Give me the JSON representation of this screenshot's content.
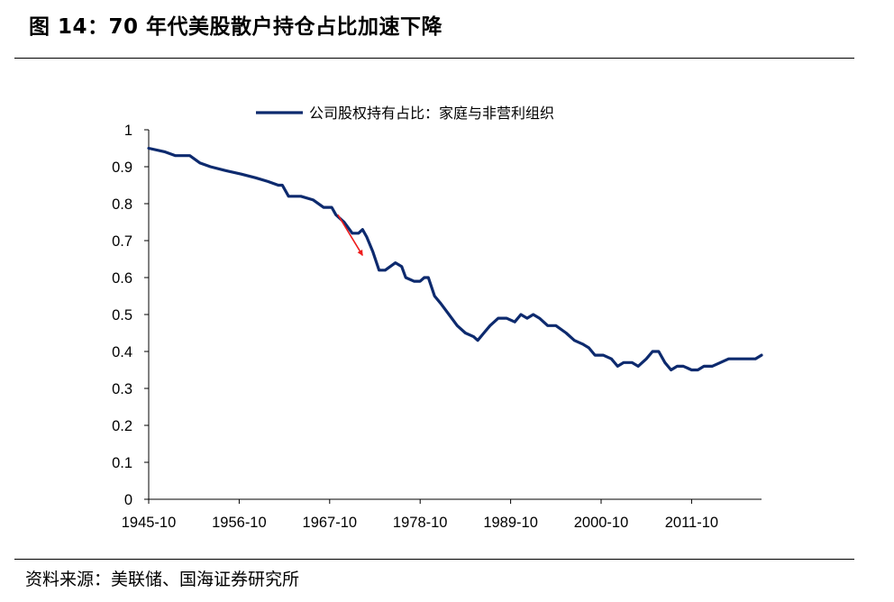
{
  "figure": {
    "title": "图 14：70 年代美股散户持仓占比加速下降",
    "source": "资料来源：美联储、国海证券研究所"
  },
  "chart_data": {
    "type": "line",
    "title": "",
    "xlabel": "",
    "ylabel": "",
    "ylim": [
      0,
      1
    ],
    "yticks": [
      "0",
      "0.1",
      "0.2",
      "0.3",
      "0.4",
      "0.5",
      "0.6",
      "0.7",
      "0.8",
      "0.9",
      "1"
    ],
    "xticks": [
      "1945-10",
      "1956-10",
      "1967-10",
      "1978-10",
      "1989-10",
      "2000-10",
      "2011-10"
    ],
    "xlim": [
      "1945-10",
      "2020-04"
    ],
    "grid": false,
    "legend_position": "top-center",
    "series": [
      {
        "name": "公司股权持有占比：家庭与非营利组织",
        "color": "#0d2a6e",
        "points": [
          [
            "1945-10",
            0.95
          ],
          [
            "1947-10",
            0.94
          ],
          [
            "1949-01",
            0.93
          ],
          [
            "1950-10",
            0.93
          ],
          [
            "1952-01",
            0.91
          ],
          [
            "1953-04",
            0.9
          ],
          [
            "1955-01",
            0.89
          ],
          [
            "1957-01",
            0.88
          ],
          [
            "1958-10",
            0.87
          ],
          [
            "1960-04",
            0.86
          ],
          [
            "1961-07",
            0.85
          ],
          [
            "1962-01",
            0.85
          ],
          [
            "1962-10",
            0.82
          ],
          [
            "1964-04",
            0.82
          ],
          [
            "1965-10",
            0.81
          ],
          [
            "1967-01",
            0.79
          ],
          [
            "1968-01",
            0.79
          ],
          [
            "1968-07",
            0.77
          ],
          [
            "1969-07",
            0.75
          ],
          [
            "1970-07",
            0.72
          ],
          [
            "1971-04",
            0.72
          ],
          [
            "1971-10",
            0.73
          ],
          [
            "1972-04",
            0.71
          ],
          [
            "1973-01",
            0.67
          ],
          [
            "1973-10",
            0.62
          ],
          [
            "1974-07",
            0.62
          ],
          [
            "1975-10",
            0.64
          ],
          [
            "1976-07",
            0.63
          ],
          [
            "1977-01",
            0.6
          ],
          [
            "1978-01",
            0.59
          ],
          [
            "1978-10",
            0.59
          ],
          [
            "1979-04",
            0.6
          ],
          [
            "1979-10",
            0.6
          ],
          [
            "1980-07",
            0.55
          ],
          [
            "1981-04",
            0.53
          ],
          [
            "1982-04",
            0.5
          ],
          [
            "1983-04",
            0.47
          ],
          [
            "1984-04",
            0.45
          ],
          [
            "1985-04",
            0.44
          ],
          [
            "1985-10",
            0.43
          ],
          [
            "1986-07",
            0.45
          ],
          [
            "1987-04",
            0.47
          ],
          [
            "1988-04",
            0.49
          ],
          [
            "1989-04",
            0.49
          ],
          [
            "1990-04",
            0.48
          ],
          [
            "1991-01",
            0.5
          ],
          [
            "1991-10",
            0.49
          ],
          [
            "1992-07",
            0.5
          ],
          [
            "1993-04",
            0.49
          ],
          [
            "1994-04",
            0.47
          ],
          [
            "1995-04",
            0.47
          ],
          [
            "1996-07",
            0.45
          ],
          [
            "1997-07",
            0.43
          ],
          [
            "1998-07",
            0.42
          ],
          [
            "1999-04",
            0.41
          ],
          [
            "2000-01",
            0.39
          ],
          [
            "2001-01",
            0.39
          ],
          [
            "2002-01",
            0.38
          ],
          [
            "2002-10",
            0.36
          ],
          [
            "2003-07",
            0.37
          ],
          [
            "2004-07",
            0.37
          ],
          [
            "2005-04",
            0.36
          ],
          [
            "2006-04",
            0.38
          ],
          [
            "2007-01",
            0.4
          ],
          [
            "2007-10",
            0.4
          ],
          [
            "2008-07",
            0.37
          ],
          [
            "2009-04",
            0.35
          ],
          [
            "2010-01",
            0.36
          ],
          [
            "2010-10",
            0.36
          ],
          [
            "2011-10",
            0.35
          ],
          [
            "2012-07",
            0.35
          ],
          [
            "2013-04",
            0.36
          ],
          [
            "2014-04",
            0.36
          ],
          [
            "2015-04",
            0.37
          ],
          [
            "2016-04",
            0.38
          ],
          [
            "2017-04",
            0.38
          ],
          [
            "2018-04",
            0.38
          ],
          [
            "2018-10",
            0.38
          ],
          [
            "2019-07",
            0.38
          ],
          [
            "2020-04",
            0.39
          ]
        ]
      }
    ],
    "annotations": [
      {
        "type": "arrow",
        "color": "#ee1c1c",
        "from": [
          "1968-10",
          0.77
        ],
        "to": [
          "1971-10",
          0.66
        ]
      }
    ]
  }
}
